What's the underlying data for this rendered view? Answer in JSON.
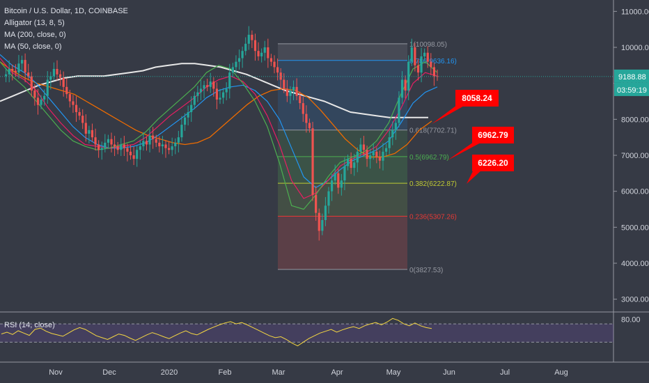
{
  "legend": {
    "symbol": "Bitcoin / U.S. Dollar, 1D, COINBASE",
    "alligator": "Alligator (13, 8, 5)",
    "ma200": "MA (200, close, 0)",
    "ma50": "MA (50, close, 0)"
  },
  "chart_data": {
    "type": "candlestick",
    "price_axis": {
      "ticks": [
        "11000.00",
        "10000.00",
        "9000.00",
        "8000.00",
        "7000.00",
        "6000.00",
        "5000.00",
        "4000.00",
        "3000.00"
      ],
      "tick_values": [
        11000,
        10000,
        9000,
        8000,
        7000,
        6000,
        5000,
        4000,
        3000
      ],
      "ylim": [
        2600,
        11400
      ]
    },
    "time_axis": {
      "ticks": [
        "Nov",
        "Dec",
        "2020",
        "Feb",
        "Mar",
        "Apr",
        "May",
        "Jun",
        "Jul",
        "Aug"
      ]
    },
    "last_price": {
      "label": "9188.88",
      "value": 9188.88,
      "countdown": "03:59:19"
    },
    "fib": {
      "levels": [
        {
          "label": "1(10098.05)",
          "value": 10098.05,
          "color": "#9598a1"
        },
        {
          "label": "0.786(9636.16)",
          "value": 9636.16,
          "color": "#2196f3"
        },
        {
          "label": "0.618(7702.71)",
          "value": 7702.71,
          "color": "#9598a1"
        },
        {
          "label": "0.5(6962.79)",
          "value": 6962.79,
          "color": "#4caf50"
        },
        {
          "label": "0.382(6222.87)",
          "value": 6222.87,
          "color": "#c0ca33"
        },
        {
          "label": "0.236(5307.26)",
          "value": 5307.26,
          "color": "#e53935"
        },
        {
          "label": "0(3827.53)",
          "value": 3827.53,
          "color": "#9598a1"
        }
      ]
    },
    "callouts": [
      {
        "text": "8058.24",
        "value": 8058.24
      },
      {
        "text": "6962.79",
        "value": 6962.79
      },
      {
        "text": "6226.20",
        "value": 6226.2
      }
    ],
    "price_series": [
      9200,
      9250,
      9400,
      9350,
      9300,
      9550,
      9650,
      9300,
      9200,
      8800,
      8600,
      8400,
      8550,
      8650,
      9100,
      9200,
      9400,
      9250,
      9150,
      8900,
      8700,
      8500,
      8400,
      8200,
      8100,
      7900,
      7600,
      7700,
      7500,
      7300,
      7150,
      7200,
      7350,
      7450,
      7300,
      7250,
      7150,
      7300,
      7200,
      7100,
      7000,
      6900,
      7150,
      7250,
      7400,
      7300,
      7550,
      7450,
      7350,
      7250,
      7300,
      7200,
      7150,
      7250,
      7350,
      7500,
      7850,
      8050,
      8200,
      8400,
      8650,
      8750,
      8850,
      8950,
      8900,
      9050,
      8850,
      8550,
      8600,
      8750,
      8850,
      9300,
      9450,
      9600,
      9700,
      9900,
      10100,
      10350,
      10200,
      9900,
      9750,
      9850,
      10000,
      9700,
      9600,
      9450,
      9300,
      9100,
      8850,
      8650,
      8800,
      8900,
      8650,
      8450,
      8150,
      7900,
      7750,
      5900,
      5400,
      4900,
      5200,
      5600,
      6000,
      6300,
      6500,
      6100,
      6300,
      6700,
      6900,
      6650,
      6800,
      7100,
      7300,
      7150,
      6900,
      7000,
      7100,
      6950,
      6850,
      7100,
      7200,
      7500,
      7700,
      7900,
      8600,
      9100,
      8800,
      9600,
      10000,
      9500,
      9300,
      9750,
      9850,
      9600,
      9450,
      9200,
      9188
    ],
    "ma200": [
      8500,
      8650,
      8800,
      8950,
      9050,
      9150,
      9200,
      9200,
      9200,
      9250,
      9300,
      9350,
      9450,
      9500,
      9550,
      9550,
      9500,
      9450,
      9350,
      9250,
      9100,
      8950,
      8800,
      8700,
      8600,
      8500,
      8350,
      8200,
      8150,
      8100,
      8050,
      8050,
      8050,
      8050
    ],
    "ma50": [
      9600,
      9350,
      9150,
      9000,
      8900,
      8800,
      8700,
      8500,
      8300,
      8100,
      7900,
      7700,
      7550,
      7450,
      7350,
      7300,
      7350,
      7500,
      7800,
      8100,
      8400,
      8650,
      8800,
      8850,
      8800,
      8600,
      8250,
      7850,
      7450,
      7150,
      6950,
      6950,
      7050,
      7300,
      7700,
      7950
    ],
    "alligator": [
      {
        "color": "#2196f3",
        "values": [
          9800,
          9500,
          9300,
          9000,
          8600,
          8200,
          7800,
          7500,
          7300,
          7200,
          7200,
          7250,
          7350,
          7550,
          7800,
          8050,
          8300,
          8600,
          8800,
          8900,
          8950,
          8800,
          8500,
          8000,
          7200,
          6400,
          6100,
          6300,
          6600,
          6850,
          7000,
          7150,
          7400,
          7900,
          8450,
          8750,
          8900
        ]
      },
      {
        "color": "#e91e63",
        "values": [
          9700,
          9300,
          9100,
          8800,
          8300,
          7900,
          7550,
          7300,
          7250,
          7200,
          7250,
          7300,
          7500,
          7800,
          8100,
          8350,
          8600,
          8900,
          9100,
          9200,
          9050,
          8700,
          8100,
          7300,
          6300,
          5800,
          5950,
          6300,
          6700,
          6900,
          7050,
          7250,
          7700,
          8300,
          9000,
          9300,
          9200
        ]
      },
      {
        "color": "#4caf50",
        "values": [
          9600,
          9200,
          8900,
          8500,
          8100,
          7700,
          7400,
          7250,
          7150,
          7200,
          7300,
          7400,
          7650,
          8000,
          8300,
          8600,
          8900,
          9300,
          9500,
          9400,
          9000,
          8500,
          7800,
          6800,
          5600,
          5500,
          5900,
          6400,
          6800,
          6950,
          7100,
          7400,
          7900,
          8700,
          9400,
          9600,
          9300
        ]
      }
    ],
    "rsi": {
      "label": "RSI (14, close)",
      "level": "80.00",
      "range": [
        20,
        90
      ],
      "upper_band": 70,
      "lower_band": 30,
      "values": [
        48,
        52,
        47,
        55,
        50,
        45,
        58,
        61,
        54,
        49,
        46,
        43,
        50,
        57,
        62,
        58,
        51,
        44,
        40,
        36,
        42,
        48,
        45,
        39,
        34,
        40,
        46,
        51,
        47,
        42,
        38,
        44,
        50,
        55,
        49,
        46,
        52,
        58,
        63,
        68,
        72,
        75,
        70,
        73,
        68,
        62,
        56,
        50,
        44,
        40,
        42,
        36,
        28,
        22,
        30,
        38,
        44,
        50,
        54,
        58,
        52,
        57,
        61,
        64,
        60,
        66,
        70,
        73,
        68,
        74,
        82,
        78,
        70,
        66,
        72,
        66,
        62,
        60
      ]
    }
  }
}
